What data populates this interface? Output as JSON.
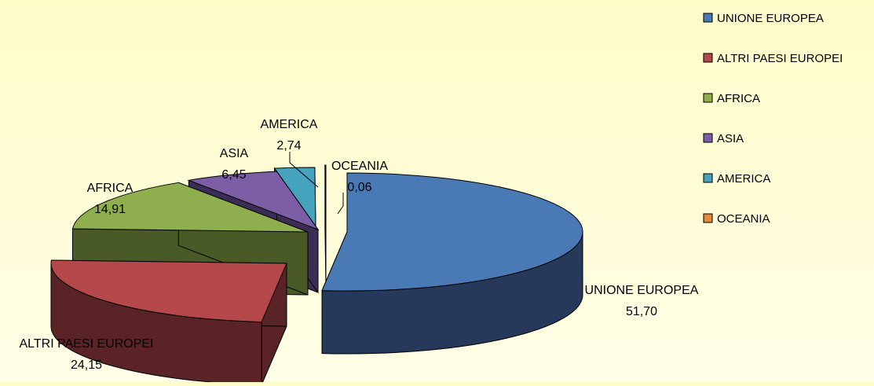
{
  "chart_data": {
    "type": "pie",
    "title": "",
    "slices": [
      {
        "label": "UNIONE EUROPEA",
        "value": 51.7,
        "value_text": "51,70",
        "color": "#4a7ab5",
        "side_color": "#26395a"
      },
      {
        "label": "ALTRI PAESI EUROPEI",
        "value": 24.15,
        "value_text": "24,15",
        "color": "#b4484a",
        "side_color": "#5a2325"
      },
      {
        "label": "AFRICA",
        "value": 14.91,
        "value_text": "14,91",
        "color": "#8fae4e",
        "side_color": "#4a5a26"
      },
      {
        "label": "ASIA",
        "value": 6.45,
        "value_text": "6,45",
        "color": "#7b5ea6",
        "side_color": "#3b2d55"
      },
      {
        "label": "AMERICA",
        "value": 2.74,
        "value_text": "2,74",
        "color": "#46a3be",
        "side_color": "#215566"
      },
      {
        "label": "OCEANIA",
        "value": 0.06,
        "value_text": "0,06",
        "color": "#e58a3a",
        "side_color": "#7a4a1f"
      }
    ],
    "legend": {
      "position": "right",
      "items": [
        "UNIONE EUROPEA",
        "ALTRI PAESI EUROPEI",
        "AFRICA",
        "ASIA",
        "AMERICA",
        "OCEANIA"
      ]
    },
    "style": "3d-exploded"
  }
}
